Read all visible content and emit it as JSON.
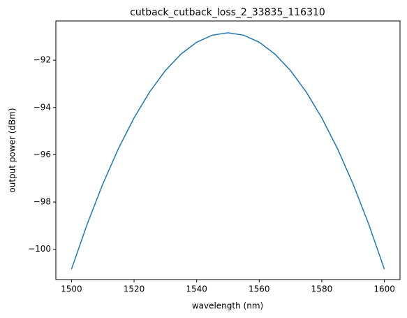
{
  "chart_data": {
    "type": "line",
    "title": "cutback_cutback_loss_2_33835_116310",
    "x_label": "wavelength (nm)",
    "y_label": "output power (dBm)",
    "x": [
      1500,
      1505,
      1510,
      1515,
      1520,
      1525,
      1530,
      1535,
      1540,
      1545,
      1550,
      1555,
      1560,
      1565,
      1570,
      1575,
      1580,
      1585,
      1590,
      1595,
      1600
    ],
    "series": [
      {
        "name": "output power",
        "color": "#1f77b4",
        "values": [
          -100.84,
          -98.94,
          -97.24,
          -95.74,
          -94.44,
          -93.34,
          -92.44,
          -91.74,
          -91.24,
          -90.94,
          -90.84,
          -90.94,
          -91.24,
          -91.74,
          -92.44,
          -93.34,
          -94.44,
          -95.74,
          -97.24,
          -98.94,
          -100.84
        ]
      }
    ],
    "xlim": [
      1495,
      1605
    ],
    "ylim": [
      -101.28,
      -90.34
    ],
    "xticks": [
      1500,
      1520,
      1540,
      1560,
      1580,
      1600
    ],
    "yticks": [
      {
        "value": -100,
        "label": "−100"
      },
      {
        "value": -98,
        "label": "−98"
      },
      {
        "value": -96,
        "label": "−96"
      },
      {
        "value": -94,
        "label": "−94"
      },
      {
        "value": -92,
        "label": "−92"
      }
    ],
    "grid": false
  }
}
